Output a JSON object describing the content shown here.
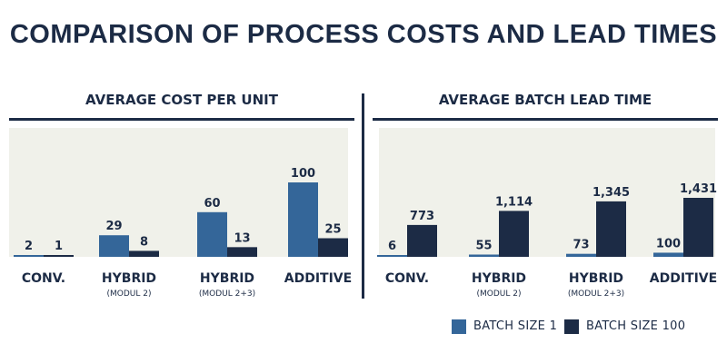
{
  "title": "COMPARISON OF PROCESS COSTS AND LEAD TIMES",
  "colors": {
    "batch1": "#346699",
    "batch100": "#1c2b45",
    "panel_bg": "#f0f1ea",
    "text": "#1c2b45"
  },
  "legend": [
    {
      "label": "BATCH SIZE 1"
    },
    {
      "label": "BATCH SIZE 100"
    }
  ],
  "chart_data": [
    {
      "type": "bar",
      "title": "AVERAGE COST PER UNIT",
      "categories": [
        {
          "label": "CONV.",
          "sublabel": ""
        },
        {
          "label": "HYBRID",
          "sublabel": "(MODUL 2)"
        },
        {
          "label": "HYBRID",
          "sublabel": "(MODUL 2+3)"
        },
        {
          "label": "ADDITIVE",
          "sublabel": ""
        }
      ],
      "series": [
        {
          "name": "BATCH SIZE 1",
          "values": [
            2,
            29,
            60,
            100
          ],
          "value_labels": [
            "2",
            "29",
            "60",
            "100"
          ]
        },
        {
          "name": "BATCH SIZE 100",
          "values": [
            1,
            8,
            13,
            25
          ],
          "value_labels": [
            "1",
            "8",
            "13",
            "25"
          ]
        }
      ],
      "ylim": [
        0,
        100
      ]
    },
    {
      "type": "bar",
      "title": "AVERAGE BATCH LEAD TIME",
      "categories": [
        {
          "label": "CONV.",
          "sublabel": ""
        },
        {
          "label": "HYBRID",
          "sublabel": "(MODUL 2)"
        },
        {
          "label": "HYBRID",
          "sublabel": "(MODUL 2+3)"
        },
        {
          "label": "ADDITIVE",
          "sublabel": ""
        }
      ],
      "series": [
        {
          "name": "BATCH SIZE 1",
          "values": [
            6,
            55,
            73,
            100
          ],
          "value_labels": [
            "6",
            "55",
            "73",
            "100"
          ]
        },
        {
          "name": "BATCH SIZE 100",
          "values": [
            773,
            1114,
            1345,
            1431
          ],
          "value_labels": [
            "773",
            "1,114",
            "1,345",
            "1,431"
          ]
        }
      ],
      "ylim": [
        0,
        1431
      ]
    }
  ]
}
